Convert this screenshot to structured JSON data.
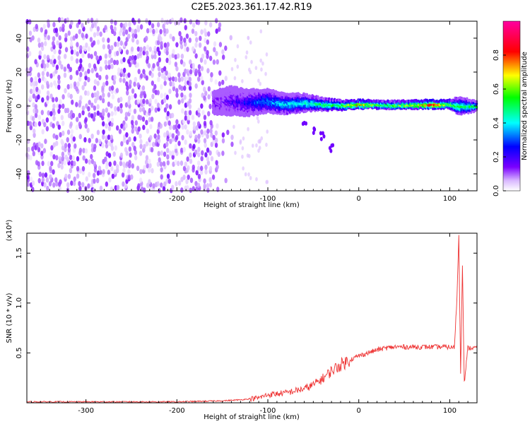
{
  "title": "C2E5.2023.361.17.42.R19",
  "chart_data": [
    {
      "type": "heatmap",
      "xlabel": "Height of straight line (km)",
      "ylabel": "Frequency (Hz)",
      "xlim": [
        -365,
        130
      ],
      "ylim": [
        -50,
        50
      ],
      "x_ticks": [
        -300,
        -200,
        -100,
        0,
        100
      ],
      "x_tick_labels": [
        "-300",
        "-200",
        "-100",
        "0",
        "100"
      ],
      "y_ticks": [
        -40,
        -20,
        0,
        20,
        40
      ],
      "y_tick_labels": [
        "-40",
        "-20",
        "0",
        "20",
        "40"
      ],
      "colorbar": {
        "label": "Normalized spectral amplitude",
        "range": [
          0,
          1
        ],
        "ticks": [
          0.0,
          0.2,
          0.4,
          0.6,
          0.8
        ],
        "tick_labels": [
          "0.0",
          "0.2",
          "0.4",
          "0.6",
          "0.8"
        ],
        "colors": [
          "#ffffff",
          "#7a00ff",
          "#0000ff",
          "#00ffff",
          "#00ff00",
          "#ffff00",
          "#ff0000",
          "#ff00a0"
        ]
      },
      "noise_region": {
        "x_range": [
          -365,
          -140
        ],
        "freq_range": [
          -50,
          50
        ],
        "amplitude_range": [
          0.02,
          0.12
        ]
      },
      "ridge": [
        {
          "x": -160,
          "f": 2,
          "spread": 8,
          "amp": 0.12
        },
        {
          "x": -140,
          "f": 3,
          "spread": 10,
          "amp": 0.18
        },
        {
          "x": -120,
          "f": 2,
          "spread": 9,
          "amp": 0.25
        },
        {
          "x": -100,
          "f": 3,
          "spread": 8,
          "amp": 0.35
        },
        {
          "x": -80,
          "f": 1,
          "spread": 7,
          "amp": 0.4
        },
        {
          "x": -60,
          "f": 2,
          "spread": 6,
          "amp": 0.45
        },
        {
          "x": -40,
          "f": 1,
          "spread": 4,
          "amp": 0.5
        },
        {
          "x": -20,
          "f": 0.5,
          "spread": 3,
          "amp": 0.55
        },
        {
          "x": 0,
          "f": 1,
          "spread": 2.5,
          "amp": 0.8
        },
        {
          "x": 20,
          "f": 1,
          "spread": 2.5,
          "amp": 0.55
        },
        {
          "x": 40,
          "f": 0.5,
          "spread": 2.5,
          "amp": 0.6
        },
        {
          "x": 60,
          "f": 0.8,
          "spread": 2.5,
          "amp": 0.65
        },
        {
          "x": 80,
          "f": 1,
          "spread": 2.5,
          "amp": 0.85
        },
        {
          "x": 100,
          "f": 1,
          "spread": 2.5,
          "amp": 0.6
        },
        {
          "x": 110,
          "f": 0,
          "spread": 6,
          "amp": 0.5
        },
        {
          "x": 130,
          "f": 0,
          "spread": 3,
          "amp": 0.5
        }
      ],
      "tail": [
        {
          "x": -60,
          "f": -10
        },
        {
          "x": -50,
          "f": -15
        },
        {
          "x": -40,
          "f": -18
        },
        {
          "x": -30,
          "f": -25
        }
      ]
    },
    {
      "type": "line",
      "xlabel": "Height of straight line (km)",
      "ylabel": "SNR (10 * v/v)",
      "y_multiplier": "(x10⁴)",
      "xlim": [
        -365,
        130
      ],
      "ylim": [
        0,
        1.7
      ],
      "x_ticks": [
        -300,
        -200,
        -100,
        0,
        100
      ],
      "x_tick_labels": [
        "-300",
        "-200",
        "-100",
        "0",
        "100"
      ],
      "y_ticks": [
        0.5,
        1.0,
        1.5
      ],
      "y_tick_labels": [
        "0.5",
        "1.0",
        "1.5"
      ],
      "color": "#ee3333",
      "series": [
        {
          "x": [
            -365,
            -300,
            -200,
            -150,
            -130,
            -110,
            -100,
            -80,
            -60,
            -50,
            -40,
            -30,
            -20,
            -10,
            0,
            10,
            20,
            30,
            40,
            60,
            80,
            100,
            105,
            108,
            110,
            112,
            114,
            116,
            120,
            130
          ],
          "y": [
            0.01,
            0.01,
            0.01,
            0.02,
            0.03,
            0.05,
            0.08,
            0.1,
            0.14,
            0.18,
            0.24,
            0.32,
            0.38,
            0.43,
            0.47,
            0.5,
            0.53,
            0.55,
            0.56,
            0.56,
            0.56,
            0.56,
            0.55,
            1.05,
            1.68,
            0.3,
            1.4,
            0.2,
            0.55,
            0.55
          ]
        }
      ]
    }
  ]
}
